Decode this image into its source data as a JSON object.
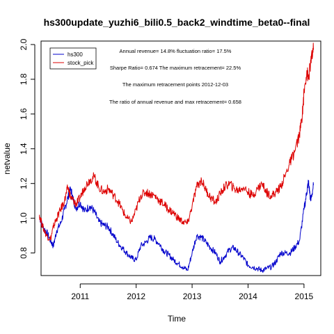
{
  "chart_data": {
    "type": "line",
    "title": "hs300update_yuzhi6_bili0.5_back2_windtime_beta0--final",
    "xlabel": "Time",
    "ylabel": "netvalue",
    "xlim": [
      2010.3,
      2015.3
    ],
    "ylim": [
      0.67,
      2.02
    ],
    "x_ticks": [
      {
        "value": 2011,
        "label": "2011"
      },
      {
        "value": 2012,
        "label": "2012"
      },
      {
        "value": 2013,
        "label": "2013"
      },
      {
        "value": 2014,
        "label": "2014"
      },
      {
        "value": 2015,
        "label": "2015"
      }
    ],
    "y_ticks": [
      {
        "value": 0.8,
        "label": "0.8"
      },
      {
        "value": 1.0,
        "label": "1.0"
      },
      {
        "value": 1.2,
        "label": "1.2"
      },
      {
        "value": 1.4,
        "label": "1.4"
      },
      {
        "value": 1.6,
        "label": "1.6"
      },
      {
        "value": 1.8,
        "label": "1.8"
      },
      {
        "value": 2.0,
        "label": "2.0"
      }
    ],
    "legend": {
      "position": "top-left",
      "box": true
    },
    "annotations": [
      "Annual revenue=  14.8% fluctuation ratio=  17.5%",
      "Sharpe Ratio=  0.674 The maximum retracement=  22.5%",
      "The maximum retracement points 2012-12-03",
      "The ratio of annual revenue and max retracement=  0.658"
    ],
    "series": [
      {
        "name": "hs300",
        "color": "#0000cc",
        "x": [
          2010.27,
          2010.33,
          2010.4,
          2010.47,
          2010.52,
          2010.58,
          2010.65,
          2010.72,
          2010.78,
          2010.83,
          2010.88,
          2010.93,
          2011.0,
          2011.08,
          2011.17,
          2011.25,
          2011.33,
          2011.42,
          2011.5,
          2011.58,
          2011.67,
          2011.75,
          2011.83,
          2011.92,
          2012.0,
          2012.08,
          2012.17,
          2012.25,
          2012.33,
          2012.42,
          2012.5,
          2012.58,
          2012.67,
          2012.75,
          2012.83,
          2012.92,
          2013.0,
          2013.08,
          2013.17,
          2013.25,
          2013.33,
          2013.42,
          2013.5,
          2013.58,
          2013.67,
          2013.75,
          2013.83,
          2013.92,
          2014.0,
          2014.08,
          2014.17,
          2014.25,
          2014.33,
          2014.42,
          2014.5,
          2014.58,
          2014.67,
          2014.75,
          2014.83,
          2014.92,
          2015.0,
          2015.05,
          2015.08,
          2015.12,
          2015.17
        ],
        "y": [
          1.01,
          0.95,
          0.92,
          0.87,
          0.84,
          0.93,
          0.97,
          1.05,
          1.12,
          1.17,
          1.1,
          1.06,
          1.09,
          1.04,
          1.07,
          1.04,
          0.98,
          0.96,
          0.95,
          0.91,
          0.86,
          0.83,
          0.8,
          0.77,
          0.76,
          0.84,
          0.86,
          0.89,
          0.88,
          0.85,
          0.81,
          0.79,
          0.76,
          0.74,
          0.72,
          0.7,
          0.8,
          0.9,
          0.89,
          0.86,
          0.83,
          0.8,
          0.75,
          0.78,
          0.82,
          0.83,
          0.8,
          0.77,
          0.73,
          0.72,
          0.71,
          0.7,
          0.71,
          0.72,
          0.75,
          0.8,
          0.8,
          0.8,
          0.83,
          0.87,
          1.05,
          1.15,
          1.21,
          1.1,
          1.19
        ]
      },
      {
        "name": "stock_pick",
        "color": "#dd0000",
        "x": [
          2010.27,
          2010.33,
          2010.4,
          2010.47,
          2010.52,
          2010.58,
          2010.65,
          2010.72,
          2010.78,
          2010.83,
          2010.88,
          2010.93,
          2011.0,
          2011.08,
          2011.17,
          2011.25,
          2011.33,
          2011.42,
          2011.5,
          2011.58,
          2011.67,
          2011.75,
          2011.83,
          2011.92,
          2012.0,
          2012.08,
          2012.17,
          2012.25,
          2012.33,
          2012.42,
          2012.5,
          2012.58,
          2012.67,
          2012.75,
          2012.83,
          2012.92,
          2013.0,
          2013.08,
          2013.17,
          2013.25,
          2013.33,
          2013.42,
          2013.5,
          2013.58,
          2013.67,
          2013.75,
          2013.83,
          2013.92,
          2014.0,
          2014.08,
          2014.17,
          2014.25,
          2014.33,
          2014.42,
          2014.5,
          2014.58,
          2014.67,
          2014.75,
          2014.83,
          2014.92,
          2014.97,
          2015.0,
          2015.05,
          2015.08,
          2015.12,
          2015.17
        ],
        "y": [
          1.02,
          0.95,
          0.9,
          0.88,
          0.95,
          1.0,
          1.05,
          1.1,
          1.18,
          1.12,
          1.1,
          1.08,
          1.12,
          1.18,
          1.22,
          1.24,
          1.18,
          1.15,
          1.17,
          1.14,
          1.1,
          1.05,
          1.0,
          0.98,
          1.05,
          1.13,
          1.15,
          1.14,
          1.13,
          1.1,
          1.08,
          1.05,
          1.03,
          1.0,
          0.98,
          0.97,
          1.07,
          1.18,
          1.22,
          1.16,
          1.12,
          1.09,
          1.14,
          1.18,
          1.2,
          1.17,
          1.16,
          1.18,
          1.15,
          1.13,
          1.17,
          1.2,
          1.15,
          1.13,
          1.15,
          1.18,
          1.25,
          1.32,
          1.38,
          1.48,
          1.6,
          1.72,
          1.85,
          1.8,
          1.9,
          1.97
        ]
      }
    ]
  }
}
